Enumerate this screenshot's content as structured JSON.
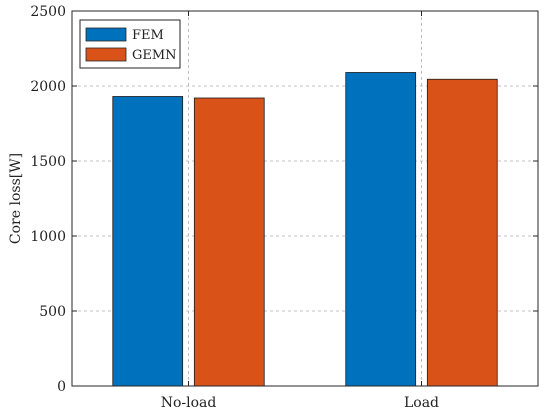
{
  "chart_data": {
    "type": "bar",
    "categories": [
      "No-load",
      "Load"
    ],
    "series": [
      {
        "name": "FEM",
        "values": [
          1930,
          2090
        ],
        "color": "#0072BD"
      },
      {
        "name": "GEMN",
        "values": [
          1920,
          2045
        ],
        "color": "#D95319"
      }
    ],
    "title": "",
    "xlabel": "",
    "ylabel": "Core loss[W]",
    "ylim": [
      0,
      2500
    ],
    "yticks": [
      0,
      500,
      1000,
      1500,
      2000,
      2500
    ],
    "grid": true,
    "legend_position": "top-left"
  }
}
